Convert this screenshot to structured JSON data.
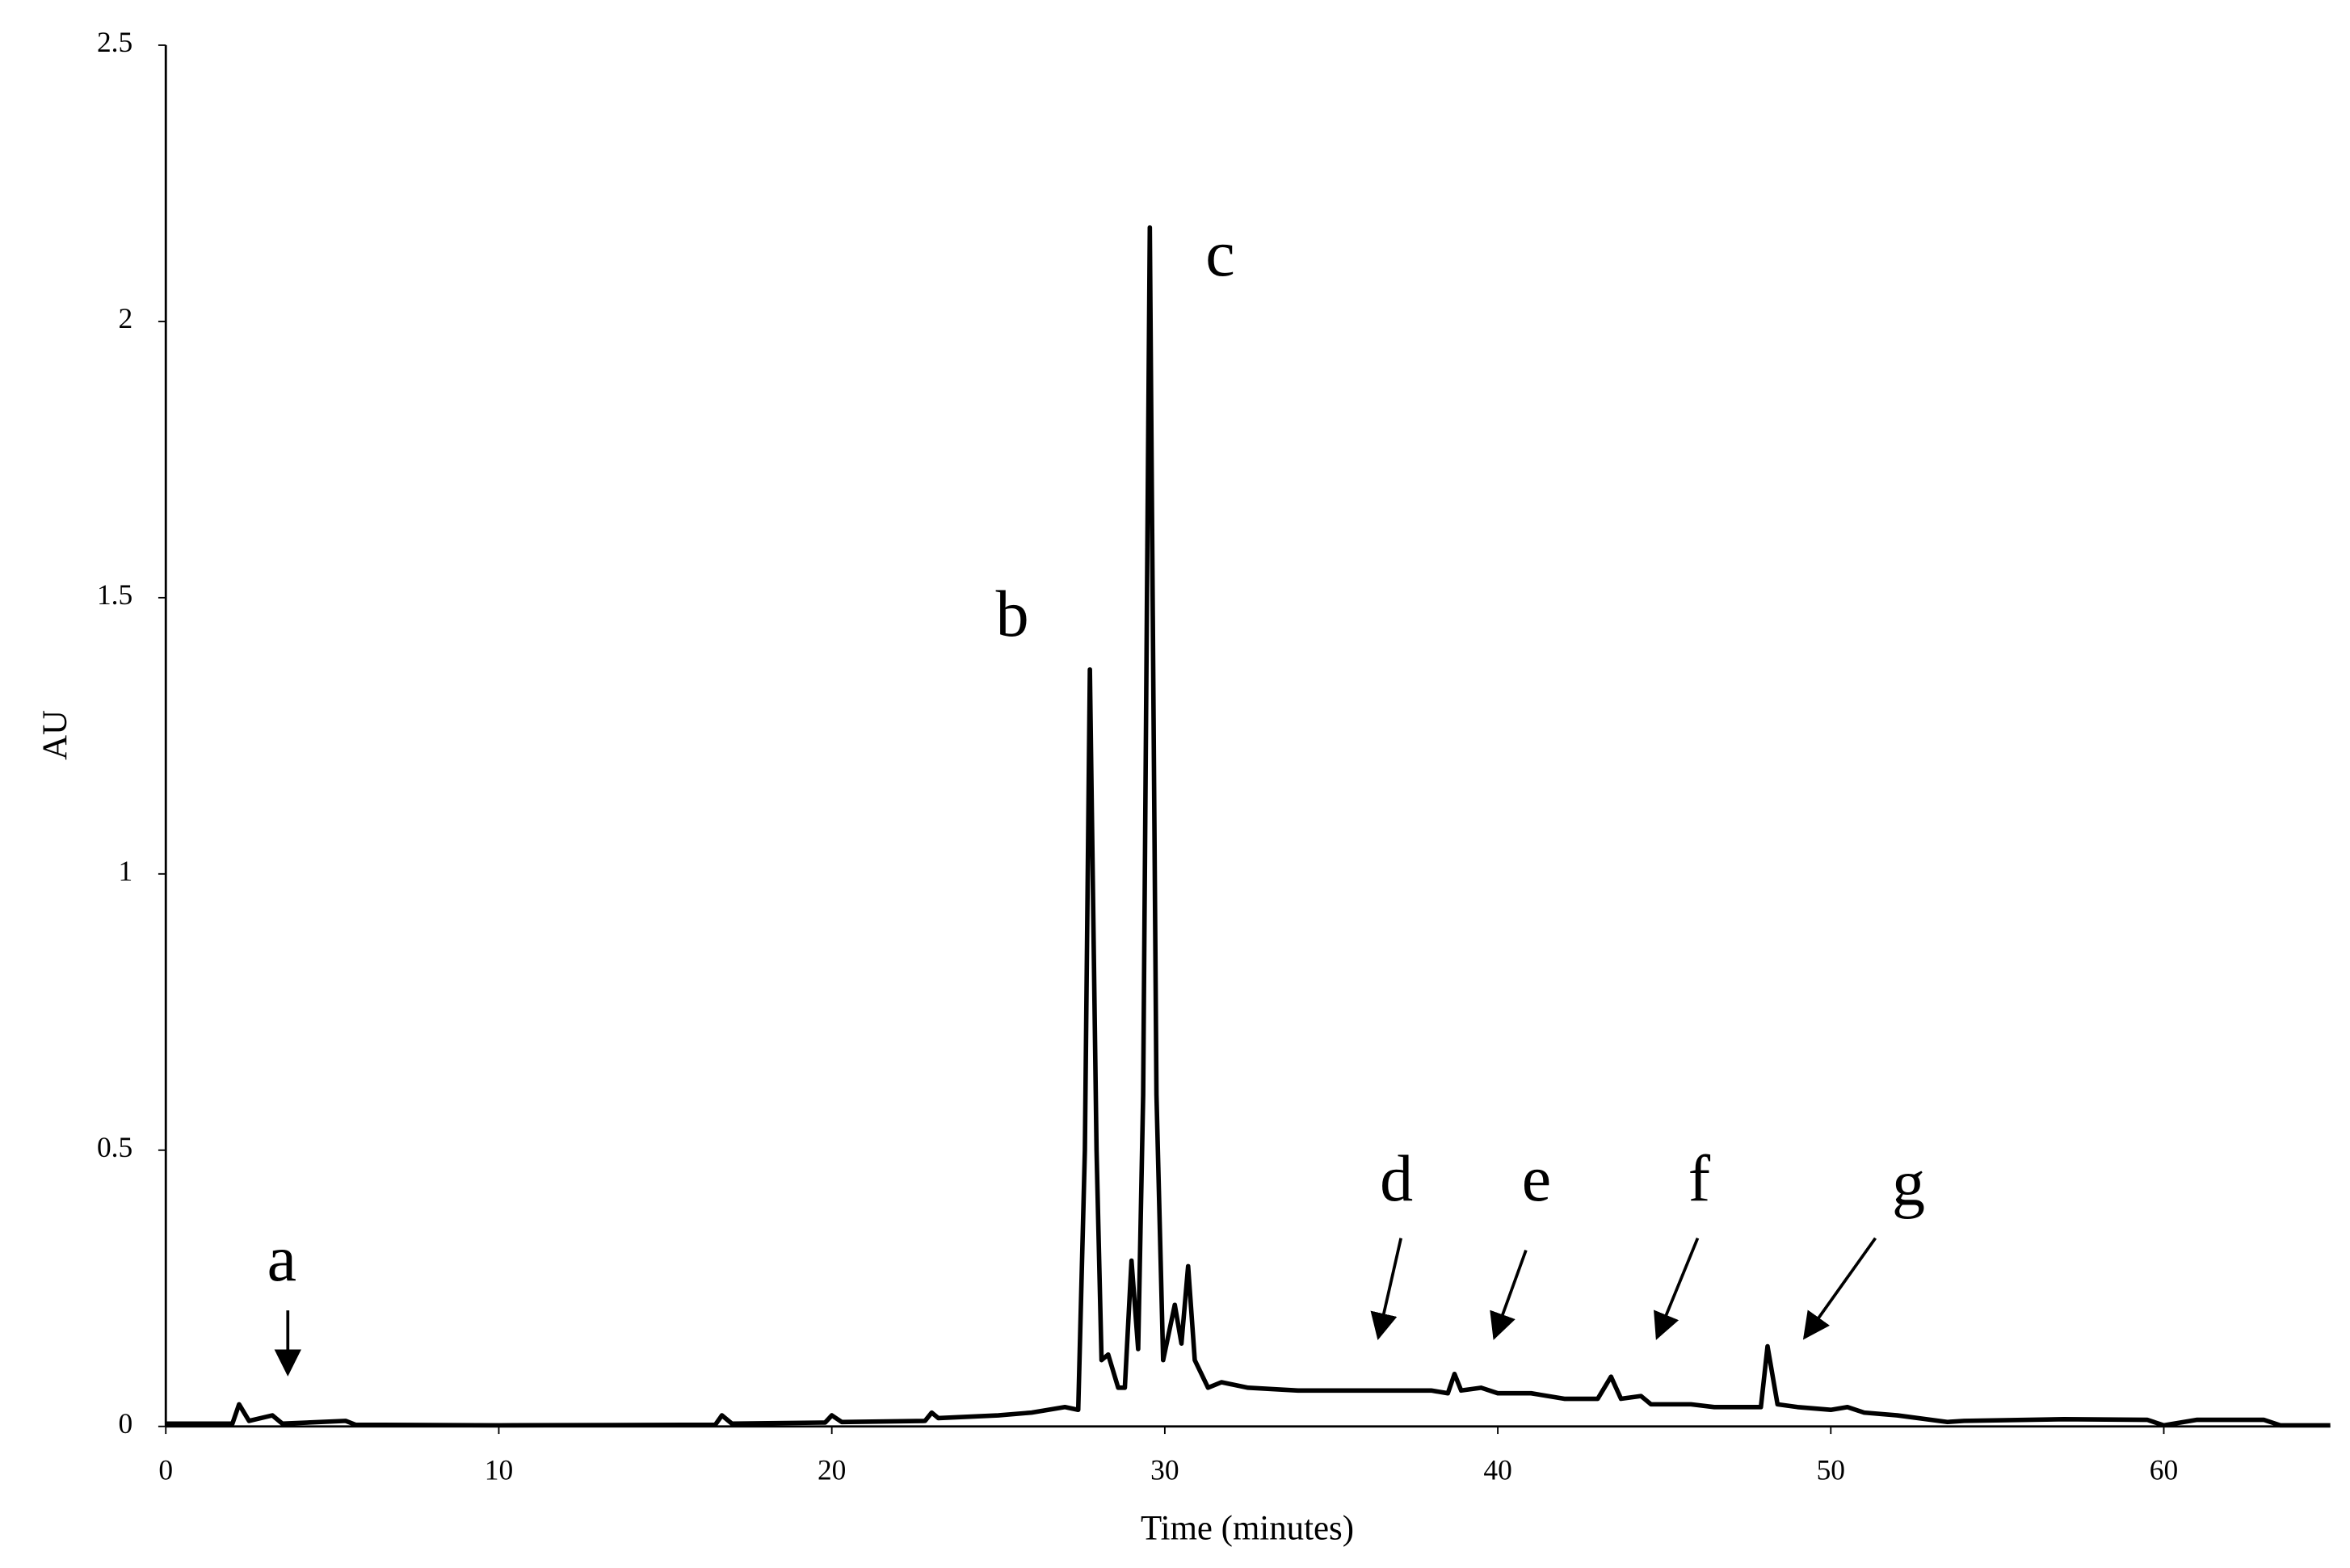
{
  "chart_data": {
    "type": "line",
    "x_label": "Time (minutes)",
    "y_label": "AU",
    "xlim": [
      0,
      65
    ],
    "ylim": [
      0,
      2.5
    ],
    "xticks": [
      0,
      10,
      20,
      30,
      40,
      50,
      60
    ],
    "yticks": [
      0,
      0.5,
      1,
      1.5,
      2,
      2.5
    ],
    "grid": false,
    "annotations": [
      "a",
      "b",
      "c",
      "d",
      "e",
      "f",
      "g"
    ],
    "series": [
      {
        "color": "#000000",
        "x": [
          0,
          2.0,
          2.2,
          2.5,
          3.2,
          3.5,
          5.4,
          5.7,
          10,
          16.5,
          16.7,
          17,
          19.8,
          20,
          20.3,
          22.8,
          23,
          23.2,
          25,
          26,
          27,
          27.4,
          27.6,
          27.75,
          27.95,
          28.1,
          28.3,
          28.6,
          28.8,
          29.0,
          29.2,
          29.35,
          29.55,
          29.75,
          29.95,
          30.3,
          30.5,
          30.7,
          30.9,
          31.3,
          31.7,
          32.5,
          34,
          36,
          38,
          38.5,
          38.7,
          38.9,
          39.5,
          40,
          41,
          42,
          43,
          43.4,
          43.7,
          44.3,
          44.6,
          45.8,
          46.5,
          47.9,
          48.1,
          48.4,
          49,
          50,
          50.5,
          51,
          52,
          53.5,
          54,
          57,
          59.5,
          60,
          61,
          63,
          63.5,
          65
        ],
        "values": [
          0.005,
          0.005,
          0.04,
          0.01,
          0.02,
          0.005,
          0.01,
          0.003,
          0.002,
          0.003,
          0.02,
          0.005,
          0.007,
          0.02,
          0.008,
          0.01,
          0.025,
          0.015,
          0.02,
          0.025,
          0.035,
          0.03,
          0.5,
          1.37,
          0.5,
          0.12,
          0.13,
          0.07,
          0.07,
          0.3,
          0.14,
          0.6,
          2.17,
          0.6,
          0.12,
          0.22,
          0.15,
          0.29,
          0.12,
          0.07,
          0.08,
          0.07,
          0.065,
          0.065,
          0.065,
          0.06,
          0.095,
          0.065,
          0.07,
          0.06,
          0.06,
          0.05,
          0.05,
          0.09,
          0.05,
          0.055,
          0.04,
          0.04,
          0.035,
          0.035,
          0.145,
          0.04,
          0.035,
          0.03,
          0.035,
          0.025,
          0.02,
          0.008,
          0.01,
          0.013,
          0.012,
          0.002,
          0.012,
          0.012,
          0.002,
          0.002
        ]
      }
    ]
  }
}
